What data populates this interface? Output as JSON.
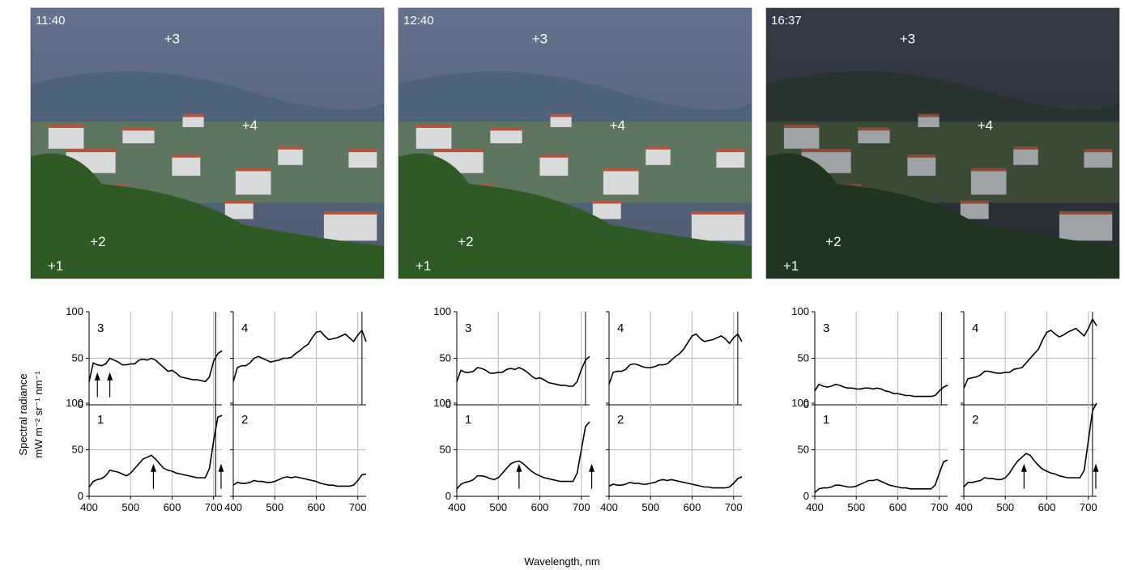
{
  "figure": {
    "ylabel_line1": "Spectral radiance",
    "ylabel_line2": "mW m⁻² sr⁻¹ nm⁻¹",
    "xlabel": "Wavelength, nm",
    "x_ticks": [
      "400",
      "500",
      "600",
      "700"
    ],
    "y_ticks": [
      "0",
      "50",
      "100"
    ]
  },
  "photos": [
    {
      "time": "11:40",
      "markers": [
        "+1",
        "+2",
        "+3",
        "+4"
      ]
    },
    {
      "time": "12:40",
      "markers": [
        "+1",
        "+2",
        "+3",
        "+4"
      ]
    },
    {
      "time": "16:37",
      "markers": [
        "+1",
        "+2",
        "+3",
        "+4"
      ]
    }
  ],
  "colors": {
    "sky": "#5f6d8c",
    "forest": "#2d4a2f",
    "trees": "#2e5a24",
    "houses": "#d8dadc",
    "roof": "#b3563f",
    "grid": "#c0c0c0",
    "line": "#000000"
  },
  "chart_data": [
    {
      "type": "line",
      "panel_label": "3",
      "scene": "11:40",
      "xlim": [
        400,
        720
      ],
      "ylim": [
        0,
        100
      ],
      "grid": true,
      "x": [
        400,
        410,
        420,
        430,
        440,
        450,
        460,
        470,
        480,
        490,
        500,
        510,
        520,
        530,
        540,
        550,
        560,
        570,
        580,
        590,
        600,
        610,
        620,
        630,
        640,
        650,
        660,
        670,
        680,
        690,
        700,
        710,
        720
      ],
      "y": [
        25,
        45,
        43,
        42,
        44,
        50,
        48,
        46,
        43,
        43,
        44,
        44,
        48,
        49,
        48,
        50,
        48,
        44,
        40,
        36,
        37,
        34,
        30,
        29,
        28,
        27,
        27,
        26,
        25,
        30,
        47,
        55,
        58
      ],
      "vlines": [
        705
      ],
      "arrows": [
        {
          "x": 420,
          "dir": "up"
        },
        {
          "x": 450,
          "dir": "up"
        }
      ]
    },
    {
      "type": "line",
      "panel_label": "4",
      "scene": "11:40",
      "xlim": [
        400,
        720
      ],
      "ylim": [
        0,
        100
      ],
      "grid": true,
      "x": [
        400,
        410,
        420,
        430,
        440,
        450,
        460,
        470,
        480,
        490,
        500,
        510,
        520,
        530,
        540,
        550,
        560,
        570,
        580,
        590,
        600,
        610,
        620,
        630,
        640,
        650,
        660,
        670,
        680,
        690,
        700,
        710,
        720
      ],
      "y": [
        25,
        40,
        42,
        42,
        45,
        50,
        52,
        50,
        48,
        46,
        47,
        48,
        50,
        50,
        51,
        55,
        58,
        62,
        65,
        72,
        78,
        79,
        74,
        70,
        71,
        72,
        74,
        76,
        72,
        68,
        75,
        80,
        68
      ],
      "vlines": [
        710
      ],
      "arrows": []
    },
    {
      "type": "line",
      "panel_label": "1",
      "scene": "11:40",
      "xlim": [
        400,
        720
      ],
      "ylim": [
        0,
        100
      ],
      "grid": true,
      "x": [
        400,
        410,
        420,
        430,
        440,
        450,
        460,
        470,
        480,
        490,
        500,
        510,
        520,
        530,
        540,
        550,
        560,
        570,
        580,
        590,
        600,
        610,
        620,
        630,
        640,
        650,
        660,
        670,
        680,
        690,
        700,
        710,
        720
      ],
      "y": [
        10,
        16,
        18,
        19,
        22,
        28,
        27,
        26,
        24,
        22,
        25,
        30,
        35,
        40,
        42,
        44,
        40,
        35,
        30,
        28,
        27,
        25,
        24,
        23,
        22,
        21,
        20,
        20,
        20,
        30,
        60,
        85,
        87
      ],
      "vlines": [
        705
      ],
      "arrows": [
        {
          "x": 555,
          "dir": "up"
        },
        {
          "x": 718,
          "dir": "up"
        }
      ]
    },
    {
      "type": "line",
      "panel_label": "2",
      "scene": "11:40",
      "xlim": [
        400,
        720
      ],
      "ylim": [
        0,
        100
      ],
      "grid": true,
      "x": [
        400,
        410,
        420,
        430,
        440,
        450,
        460,
        470,
        480,
        490,
        500,
        510,
        520,
        530,
        540,
        550,
        560,
        570,
        580,
        590,
        600,
        610,
        620,
        630,
        640,
        650,
        660,
        670,
        680,
        690,
        700,
        710,
        720
      ],
      "y": [
        12,
        15,
        14,
        14,
        15,
        17,
        16,
        16,
        15,
        15,
        16,
        18,
        20,
        21,
        20,
        21,
        20,
        19,
        18,
        17,
        16,
        14,
        13,
        12,
        12,
        11,
        11,
        11,
        11,
        12,
        17,
        23,
        24
      ],
      "vlines": [],
      "arrows": []
    },
    {
      "type": "line",
      "panel_label": "3",
      "scene": "12:40",
      "xlim": [
        400,
        720
      ],
      "ylim": [
        0,
        100
      ],
      "grid": true,
      "x": [
        400,
        410,
        420,
        430,
        440,
        450,
        460,
        470,
        480,
        490,
        500,
        510,
        520,
        530,
        540,
        550,
        560,
        570,
        580,
        590,
        600,
        610,
        620,
        630,
        640,
        650,
        660,
        670,
        680,
        690,
        700,
        710,
        720
      ],
      "y": [
        25,
        37,
        35,
        35,
        36,
        40,
        39,
        37,
        34,
        34,
        35,
        35,
        38,
        39,
        38,
        40,
        38,
        35,
        31,
        28,
        29,
        27,
        24,
        23,
        22,
        21,
        21,
        20,
        20,
        25,
        38,
        48,
        52
      ],
      "vlines": [
        710
      ],
      "arrows": []
    },
    {
      "type": "line",
      "panel_label": "4",
      "scene": "12:40",
      "xlim": [
        400,
        720
      ],
      "ylim": [
        0,
        100
      ],
      "grid": true,
      "x": [
        400,
        410,
        420,
        430,
        440,
        450,
        460,
        470,
        480,
        490,
        500,
        510,
        520,
        530,
        540,
        550,
        560,
        570,
        580,
        590,
        600,
        610,
        620,
        630,
        640,
        650,
        660,
        670,
        680,
        690,
        700,
        710,
        720
      ],
      "y": [
        22,
        35,
        36,
        36,
        38,
        43,
        44,
        43,
        41,
        40,
        40,
        41,
        43,
        43,
        44,
        48,
        52,
        55,
        60,
        67,
        74,
        76,
        71,
        68,
        69,
        70,
        72,
        74,
        71,
        66,
        72,
        76,
        68
      ],
      "vlines": [
        710
      ],
      "arrows": []
    },
    {
      "type": "line",
      "panel_label": "1",
      "scene": "12:40",
      "xlim": [
        400,
        720
      ],
      "ylim": [
        0,
        100
      ],
      "grid": true,
      "x": [
        400,
        410,
        420,
        430,
        440,
        450,
        460,
        470,
        480,
        490,
        500,
        510,
        520,
        530,
        540,
        550,
        560,
        570,
        580,
        590,
        600,
        610,
        620,
        630,
        640,
        650,
        660,
        670,
        680,
        690,
        700,
        710,
        720
      ],
      "y": [
        8,
        13,
        15,
        16,
        18,
        22,
        22,
        21,
        19,
        18,
        20,
        25,
        30,
        35,
        37,
        38,
        35,
        31,
        27,
        24,
        22,
        20,
        19,
        18,
        17,
        16,
        16,
        16,
        16,
        25,
        50,
        75,
        80
      ],
      "vlines": [],
      "arrows": [
        {
          "x": 550,
          "dir": "up"
        },
        {
          "x": 725,
          "dir": "up"
        }
      ]
    },
    {
      "type": "line",
      "panel_label": "2",
      "scene": "12:40",
      "xlim": [
        400,
        720
      ],
      "ylim": [
        0,
        100
      ],
      "grid": true,
      "x": [
        400,
        410,
        420,
        430,
        440,
        450,
        460,
        470,
        480,
        490,
        500,
        510,
        520,
        530,
        540,
        550,
        560,
        570,
        580,
        590,
        600,
        610,
        620,
        630,
        640,
        650,
        660,
        670,
        680,
        690,
        700,
        710,
        720
      ],
      "y": [
        11,
        13,
        12,
        12,
        13,
        15,
        14,
        14,
        13,
        13,
        14,
        15,
        17,
        18,
        17,
        18,
        17,
        16,
        15,
        14,
        13,
        12,
        11,
        10,
        10,
        9,
        9,
        9,
        9,
        10,
        14,
        19,
        21
      ],
      "vlines": [],
      "arrows": []
    },
    {
      "type": "line",
      "panel_label": "3",
      "scene": "16:37",
      "xlim": [
        400,
        720
      ],
      "ylim": [
        0,
        100
      ],
      "grid": true,
      "x": [
        400,
        410,
        420,
        430,
        440,
        450,
        460,
        470,
        480,
        490,
        500,
        510,
        520,
        530,
        540,
        550,
        560,
        570,
        580,
        590,
        600,
        610,
        620,
        630,
        640,
        650,
        660,
        670,
        680,
        690,
        700,
        710,
        720
      ],
      "y": [
        15,
        22,
        20,
        19,
        20,
        22,
        21,
        19,
        18,
        18,
        17,
        17,
        18,
        18,
        17,
        18,
        17,
        15,
        14,
        12,
        12,
        11,
        10,
        10,
        9,
        9,
        9,
        9,
        9,
        10,
        15,
        19,
        21
      ],
      "vlines": [
        705
      ],
      "arrows": []
    },
    {
      "type": "line",
      "panel_label": "4",
      "scene": "16:37",
      "xlim": [
        400,
        720
      ],
      "ylim": [
        0,
        100
      ],
      "grid": true,
      "x": [
        400,
        410,
        420,
        430,
        440,
        450,
        460,
        470,
        480,
        490,
        500,
        510,
        520,
        530,
        540,
        550,
        560,
        570,
        580,
        590,
        600,
        610,
        620,
        630,
        640,
        650,
        660,
        670,
        680,
        690,
        700,
        710,
        720
      ],
      "y": [
        18,
        28,
        29,
        30,
        32,
        36,
        36,
        35,
        34,
        34,
        35,
        35,
        38,
        39,
        40,
        45,
        50,
        55,
        60,
        70,
        78,
        80,
        76,
        73,
        75,
        78,
        80,
        82,
        78,
        74,
        82,
        92,
        85
      ],
      "vlines": [
        710
      ],
      "arrows": []
    },
    {
      "type": "line",
      "panel_label": "1",
      "scene": "16:37",
      "xlim": [
        400,
        720
      ],
      "ylim": [
        0,
        100
      ],
      "grid": true,
      "x": [
        400,
        410,
        420,
        430,
        440,
        450,
        460,
        470,
        480,
        490,
        500,
        510,
        520,
        530,
        540,
        550,
        560,
        570,
        580,
        590,
        600,
        610,
        620,
        630,
        640,
        650,
        660,
        670,
        680,
        690,
        700,
        710,
        720
      ],
      "y": [
        4,
        8,
        9,
        9,
        10,
        12,
        12,
        11,
        10,
        10,
        11,
        13,
        15,
        17,
        17,
        18,
        16,
        14,
        12,
        11,
        10,
        9,
        9,
        8,
        8,
        8,
        8,
        8,
        8,
        12,
        25,
        37,
        39
      ],
      "vlines": [],
      "arrows": []
    },
    {
      "type": "line",
      "panel_label": "2",
      "scene": "16:37",
      "xlim": [
        400,
        720
      ],
      "ylim": [
        0,
        100
      ],
      "grid": true,
      "x": [
        400,
        410,
        420,
        430,
        440,
        450,
        460,
        470,
        480,
        490,
        500,
        510,
        520,
        530,
        540,
        550,
        560,
        570,
        580,
        590,
        600,
        610,
        620,
        630,
        640,
        650,
        660,
        670,
        680,
        690,
        700,
        710,
        720
      ],
      "y": [
        10,
        15,
        15,
        16,
        17,
        20,
        19,
        19,
        18,
        18,
        20,
        25,
        32,
        38,
        42,
        46,
        44,
        38,
        33,
        29,
        27,
        25,
        24,
        22,
        21,
        20,
        20,
        20,
        20,
        28,
        60,
        92,
        100
      ],
      "vlines": [
        710
      ],
      "arrows": [
        {
          "x": 545,
          "dir": "up"
        },
        {
          "x": 718,
          "dir": "up"
        }
      ]
    }
  ]
}
